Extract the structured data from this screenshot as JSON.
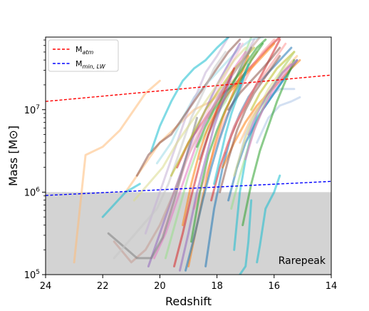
{
  "chart_data": {
    "type": "line",
    "xlabel": "Redshift",
    "ylabel": "Mass [M⊙]",
    "xlim": [
      24,
      14
    ],
    "ylim_log10": [
      5,
      7.88
    ],
    "y_scale": "log",
    "x_ticks": [
      {
        "value": 24,
        "label": "24"
      },
      {
        "value": 22,
        "label": "22"
      },
      {
        "value": 20,
        "label": "20"
      },
      {
        "value": 18,
        "label": "18"
      },
      {
        "value": 16,
        "label": "16"
      },
      {
        "value": 14,
        "label": "14"
      }
    ],
    "y_ticks": [
      {
        "log10": 5,
        "base": "10",
        "exp": "5"
      },
      {
        "log10": 6,
        "base": "10",
        "exp": "6"
      },
      {
        "log10": 7,
        "base": "10",
        "exp": "7"
      }
    ],
    "shaded_region": {
      "y_log10_min": 5,
      "y_log10_max": 6,
      "color": "#d3d3d3"
    },
    "annotation": "Rarepeak",
    "legend": {
      "placement": "top-left",
      "entries": [
        {
          "base": "M",
          "sub": "atm",
          "color": "#ff0000",
          "style": "dashed"
        },
        {
          "base": "M",
          "sub": "min, LW",
          "color": "#0000ff",
          "style": "dashed"
        }
      ]
    },
    "reference_lines": [
      {
        "label": "M_atm",
        "color": "#ff0000",
        "x": [
          24,
          14
        ],
        "log10_y": [
          7.1,
          7.42
        ]
      },
      {
        "label": "M_min,LW",
        "color": "#0000ff",
        "x": [
          24,
          14
        ],
        "log10_y": [
          5.96,
          6.13
        ]
      }
    ],
    "halo_tracks": [
      {
        "color": "#ffbb78",
        "x": [
          23,
          22.6,
          22,
          21.4,
          20.5,
          20
        ],
        "log10_y": [
          5.15,
          6.45,
          6.55,
          6.75,
          7.2,
          7.35
        ]
      },
      {
        "color": "#ffbb78",
        "x": [
          21.2,
          20.6,
          20,
          19.4,
          18.8,
          18.2,
          17.6,
          17,
          16.6
        ],
        "log10_y": [
          6.0,
          6.3,
          6.6,
          6.8,
          7.0,
          7.1,
          7.3,
          7.5,
          7.7
        ]
      },
      {
        "color": "#98df8a",
        "x": [
          19.8,
          19.4,
          19,
          18.6,
          18.1,
          17.7,
          17.3,
          17,
          16.8
        ],
        "log10_y": [
          5.2,
          5.7,
          6.2,
          6.6,
          6.9,
          7.1,
          7.4,
          7.7,
          7.88
        ]
      },
      {
        "color": "#17becf",
        "x": [
          22,
          21.2,
          20.7
        ],
        "log10_y": [
          5.7,
          6.0,
          6.1
        ]
      },
      {
        "color": "#17becf",
        "x": [
          17.4,
          17.2,
          17,
          16.8,
          16.6,
          16.4,
          16.2,
          15.8,
          15.5,
          15.2
        ],
        "log10_y": [
          5.3,
          6.0,
          6.4,
          6.7,
          6.9,
          7.0,
          7.1,
          7.3,
          7.45,
          7.6
        ]
      },
      {
        "color": "#17becf",
        "x": [
          16.6,
          16.5,
          16.3,
          16,
          15.8
        ],
        "log10_y": [
          5.15,
          5.35,
          5.8,
          6.0,
          6.2
        ]
      },
      {
        "color": "#9edae5",
        "x": [
          20.1,
          19.6,
          19.2,
          18.8,
          18.4,
          18,
          17.6,
          17.2,
          16.8,
          16.4
        ],
        "log10_y": [
          6.35,
          6.6,
          6.9,
          7.15,
          7.3,
          7.45,
          7.6,
          7.75,
          7.85,
          7.88
        ]
      },
      {
        "color": "#d62728",
        "x": [
          19.4,
          19,
          18.6,
          18.2,
          17.8,
          17.4,
          17,
          16.6,
          16.2,
          15.8
        ],
        "log10_y": [
          6.3,
          6.6,
          6.8,
          7.0,
          7.2,
          7.3,
          7.45,
          7.6,
          7.75,
          7.88
        ]
      },
      {
        "color": "#ff9896",
        "x": [
          18.8,
          18.4,
          18,
          17.7,
          17.4,
          17.1,
          16.8,
          16.4,
          16
        ],
        "log10_y": [
          5.8,
          6.2,
          6.6,
          6.9,
          7.1,
          7.3,
          7.5,
          7.7,
          7.85
        ]
      },
      {
        "color": "#1f77b4",
        "x": [
          18.4,
          18.1,
          17.8,
          17.5,
          17.2,
          16.9,
          16.6,
          16.2,
          15.8,
          15.4
        ],
        "log10_y": [
          5.1,
          5.8,
          6.3,
          6.7,
          6.95,
          7.15,
          7.3,
          7.45,
          7.6,
          7.75
        ]
      },
      {
        "color": "#aec7e8",
        "x": [
          17.3,
          17,
          16.6,
          16.2,
          15.8,
          15.3
        ],
        "log10_y": [
          6.3,
          6.7,
          7.0,
          7.15,
          7.25,
          7.25
        ]
      },
      {
        "color": "#ff7f0e",
        "x": [
          19.2,
          18.9,
          18.6,
          18.3,
          18,
          17.6,
          17.2,
          16.8,
          16.4,
          16
        ],
        "log10_y": [
          5.6,
          6.1,
          6.5,
          6.8,
          7.0,
          7.2,
          7.35,
          7.5,
          7.65,
          7.8
        ]
      },
      {
        "color": "#2ca02c",
        "x": [
          18.9,
          18.6,
          18.3,
          18,
          17.7,
          17.4,
          17.1,
          16.8,
          16.4
        ],
        "log10_y": [
          5.4,
          6.0,
          6.45,
          6.75,
          7.0,
          7.2,
          7.4,
          7.6,
          7.8
        ]
      },
      {
        "color": "#9467bd",
        "x": [
          20.4,
          20,
          19.6,
          19.2,
          18.8,
          18.4,
          18,
          17.6,
          17.2
        ],
        "log10_y": [
          5.1,
          5.5,
          5.9,
          6.3,
          6.7,
          7.0,
          7.3,
          7.55,
          7.8
        ]
      },
      {
        "color": "#c5b0d5",
        "x": [
          20.5,
          20.1,
          19.7,
          19.3,
          19,
          18.7,
          18.4,
          18,
          17.6
        ],
        "log10_y": [
          5.5,
          5.9,
          6.3,
          6.7,
          7.0,
          7.2,
          7.45,
          7.65,
          7.88
        ]
      },
      {
        "color": "#8c564b",
        "x": [
          20.8,
          20.4,
          20,
          19.6,
          19.2,
          18.8,
          18.4,
          18,
          17.6,
          17.2
        ],
        "log10_y": [
          6.2,
          6.45,
          6.6,
          6.7,
          6.9,
          7.1,
          7.3,
          7.5,
          7.7,
          7.85
        ]
      },
      {
        "color": "#c49c94",
        "x": [
          21.6,
          21,
          20.5,
          20,
          19.5,
          19,
          18.5,
          18,
          17.5
        ],
        "log10_y": [
          5.4,
          5.15,
          5.3,
          5.6,
          6.0,
          6.45,
          6.8,
          7.1,
          7.4
        ]
      },
      {
        "color": "#e377c2",
        "x": [
          20.2,
          19.8,
          19.4,
          19,
          18.6,
          18.2,
          17.8,
          17.4,
          17
        ],
        "log10_y": [
          5.2,
          5.5,
          5.9,
          6.3,
          6.7,
          7.0,
          7.25,
          7.5,
          7.7
        ]
      },
      {
        "color": "#f7b6d2",
        "x": [
          19.9,
          19.5,
          19.1,
          18.7,
          18.3,
          17.9,
          17.5,
          17.1
        ],
        "log10_y": [
          5.5,
          5.9,
          6.35,
          6.7,
          7.0,
          7.3,
          7.55,
          7.8
        ]
      },
      {
        "color": "#7f7f7f",
        "x": [
          21.8,
          21.3,
          20.8,
          20.3,
          19.9,
          19.5,
          19.1,
          18.7
        ],
        "log10_y": [
          5.5,
          5.35,
          5.2,
          5.2,
          5.45,
          5.9,
          6.4,
          6.9
        ]
      },
      {
        "color": "#c7c7c7",
        "x": [
          21.6,
          21.1,
          20.6,
          20.1,
          19.7,
          19.3,
          18.9,
          18.5,
          18.1,
          17.7
        ],
        "log10_y": [
          5.2,
          5.4,
          5.6,
          5.8,
          6.1,
          6.5,
          6.9,
          7.2,
          7.5,
          7.7
        ]
      },
      {
        "color": "#bcbd22",
        "x": [
          19.6,
          19.3,
          19,
          18.7,
          18.4,
          18.1,
          17.8,
          17.5,
          17.1,
          16.7
        ],
        "log10_y": [
          6.2,
          6.4,
          6.6,
          6.8,
          7.0,
          7.15,
          7.3,
          7.45,
          7.6,
          7.75
        ]
      },
      {
        "color": "#dbdb8d",
        "x": [
          20.9,
          20.4,
          19.9,
          19.4,
          19,
          18.6,
          18.2,
          17.8,
          17.4,
          17
        ],
        "log10_y": [
          5.9,
          6.1,
          6.3,
          6.6,
          6.8,
          7.0,
          7.2,
          7.4,
          7.6,
          7.75
        ]
      },
      {
        "color": "#17becf",
        "x": [
          20.3,
          20,
          19.6,
          19.2,
          18.8,
          18.4,
          18,
          17.6
        ],
        "log10_y": [
          6.5,
          6.8,
          7.1,
          7.35,
          7.5,
          7.6,
          7.75,
          7.88
        ]
      },
      {
        "color": "#1f77b4",
        "x": [
          17.6,
          17.3,
          17,
          16.7,
          16.4,
          16.1,
          15.8,
          15.5,
          15.2
        ],
        "log10_y": [
          5.9,
          6.3,
          6.6,
          6.8,
          7.0,
          7.15,
          7.3,
          7.45,
          7.6
        ]
      },
      {
        "color": "#aec7e8",
        "x": [
          16.6,
          16.2,
          15.8,
          15.4,
          15.1
        ],
        "log10_y": [
          6.6,
          6.9,
          7.05,
          7.1,
          7.15
        ]
      },
      {
        "color": "#ff7f0e",
        "x": [
          17.8,
          17.4,
          17,
          16.6,
          16.2,
          15.8,
          15.4,
          15.1
        ],
        "log10_y": [
          6.3,
          6.6,
          6.85,
          7.05,
          7.2,
          7.35,
          7.5,
          7.6
        ]
      },
      {
        "color": "#ffbb78",
        "x": [
          17.2,
          16.8,
          16.4,
          16,
          15.6,
          15.2
        ],
        "log10_y": [
          6.6,
          6.9,
          7.1,
          7.3,
          7.5,
          7.65
        ]
      },
      {
        "color": "#2ca02c",
        "x": [
          17.1,
          16.8,
          16.5,
          16.2,
          15.9,
          15.6,
          15.3
        ],
        "log10_y": [
          5.6,
          6.1,
          6.5,
          6.8,
          7.1,
          7.35,
          7.6
        ]
      },
      {
        "color": "#98df8a",
        "x": [
          17.5,
          17.2,
          16.9,
          16.6,
          16.3,
          16,
          15.7,
          15.3
        ],
        "log10_y": [
          5.8,
          6.2,
          6.55,
          6.85,
          7.1,
          7.3,
          7.5,
          7.7
        ]
      },
      {
        "color": "#d62728",
        "x": [
          18.2,
          17.9,
          17.6,
          17.3,
          17,
          16.7,
          16.4,
          16.1,
          15.8
        ],
        "log10_y": [
          5.9,
          6.3,
          6.6,
          6.85,
          7.05,
          7.25,
          7.45,
          7.65,
          7.85
        ]
      },
      {
        "color": "#ff9896",
        "x": [
          17.7,
          17.4,
          17.1,
          16.8,
          16.5,
          16.2,
          15.9,
          15.6
        ],
        "log10_y": [
          6.5,
          6.8,
          7.0,
          7.2,
          7.35,
          7.5,
          7.65,
          7.8
        ]
      },
      {
        "color": "#9467bd",
        "x": [
          16.9,
          16.6,
          16.3,
          16,
          15.7,
          15.4
        ],
        "log10_y": [
          6.7,
          6.95,
          7.15,
          7.3,
          7.45,
          7.55
        ]
      },
      {
        "color": "#c5b0d5",
        "x": [
          18.5,
          18.2,
          17.9,
          17.6,
          17.3,
          17,
          16.7
        ],
        "log10_y": [
          6.8,
          7.0,
          7.2,
          7.35,
          7.5,
          7.65,
          7.85
        ]
      },
      {
        "color": "#8c564b",
        "x": [
          17.9,
          17.6,
          17.3,
          17,
          16.7,
          16.4,
          16.1,
          15.8
        ],
        "log10_y": [
          6.0,
          6.4,
          6.75,
          7.0,
          7.2,
          7.35,
          7.5,
          7.65
        ]
      },
      {
        "color": "#c49c94",
        "x": [
          18.3,
          18,
          17.7,
          17.4,
          17.1,
          16.8,
          16.5
        ],
        "log10_y": [
          6.9,
          7.1,
          7.3,
          7.45,
          7.6,
          7.75,
          7.88
        ]
      },
      {
        "color": "#e377c2",
        "x": [
          17,
          16.7,
          16.4,
          16.1,
          15.8,
          15.5,
          15.2
        ],
        "log10_y": [
          6.4,
          6.75,
          7.0,
          7.2,
          7.35,
          7.5,
          7.6
        ]
      },
      {
        "color": "#7f7f7f",
        "x": [
          18.6,
          18.3,
          18,
          17.7,
          17.4,
          17.1,
          16.8
        ],
        "log10_y": [
          6.4,
          6.7,
          6.95,
          7.15,
          7.35,
          7.55,
          7.75
        ]
      },
      {
        "color": "#bcbd22",
        "x": [
          16.8,
          16.5,
          16.2,
          15.9,
          15.6,
          15.3
        ],
        "log10_y": [
          7.0,
          7.2,
          7.35,
          7.5,
          7.6,
          7.7
        ]
      },
      {
        "color": "#dbdb8d",
        "x": [
          17.4,
          17.1,
          16.8,
          16.5,
          16.2,
          15.9,
          15.6,
          15.3
        ],
        "log10_y": [
          6.2,
          6.55,
          6.85,
          7.05,
          7.25,
          7.4,
          7.55,
          7.7
        ]
      },
      {
        "color": "#ff7f0e",
        "x": [
          19,
          18.7,
          18.4,
          18.1,
          17.8,
          17.5,
          17.2,
          16.9
        ],
        "log10_y": [
          5.1,
          5.6,
          6.1,
          6.55,
          6.9,
          7.15,
          7.4,
          7.65
        ]
      },
      {
        "color": "#d62728",
        "x": [
          19.5,
          19.2,
          18.9,
          18.6,
          18.3,
          18,
          17.7,
          17.4
        ],
        "log10_y": [
          5.1,
          5.5,
          5.95,
          6.35,
          6.7,
          7.0,
          7.25,
          7.5
        ]
      },
      {
        "color": "#2ca02c",
        "x": [
          18.7,
          18.4,
          18.1,
          17.8,
          17.5,
          17.2,
          16.9,
          16.6,
          16.3
        ],
        "log10_y": [
          6.55,
          6.8,
          7.0,
          7.15,
          7.3,
          7.45,
          7.6,
          7.75,
          7.85
        ]
      },
      {
        "color": "#9467bd",
        "x": [
          19.3,
          19,
          18.7,
          18.4,
          18.1,
          17.8,
          17.5
        ],
        "log10_y": [
          5.05,
          5.5,
          6.0,
          6.4,
          6.8,
          7.1,
          7.4
        ]
      },
      {
        "color": "#8c564b",
        "x": [
          17.6,
          17.2,
          16.8,
          16.4,
          16.1,
          15.8
        ],
        "log10_y": [
          7.0,
          7.2,
          7.35,
          7.5,
          7.62,
          7.75
        ]
      },
      {
        "color": "#1f77b4",
        "x": [
          19.1,
          18.8,
          18.5,
          18.2,
          17.9,
          17.6,
          17.3,
          17
        ],
        "log10_y": [
          5.05,
          5.45,
          5.9,
          6.3,
          6.65,
          6.95,
          7.2,
          7.45
        ]
      },
      {
        "color": "#17becf",
        "x": [
          18.1,
          17.9,
          17.7,
          17.5,
          17.3,
          17.1,
          16.9
        ],
        "log10_y": [
          6.1,
          6.4,
          6.7,
          6.95,
          7.15,
          7.35,
          7.55
        ]
      },
      {
        "color": "#17becf",
        "x": [
          17.2,
          17,
          16.9,
          16.8
        ],
        "log10_y": [
          5.0,
          5.1,
          5.4,
          5.9
        ]
      }
    ]
  }
}
